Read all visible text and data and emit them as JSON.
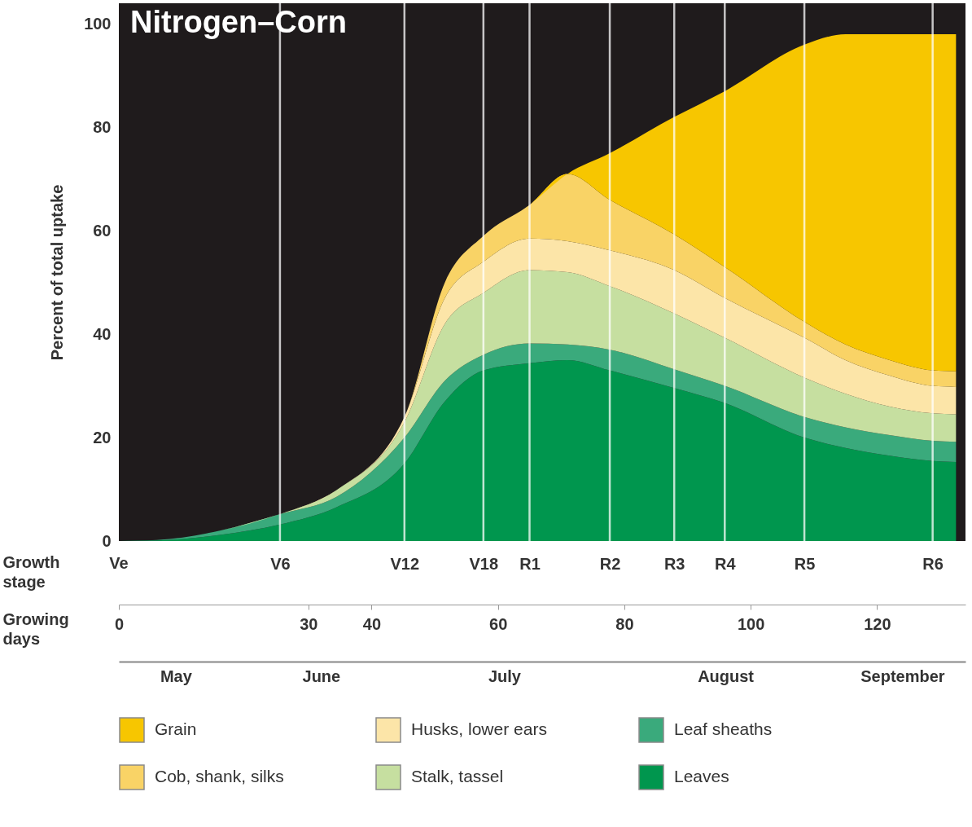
{
  "chart_data": {
    "type": "area",
    "title": "Nitrogen–Corn",
    "ylabel": "Percent of total uptake",
    "xlabel": "Growing days",
    "stacked": true,
    "x": [
      0,
      6,
      16,
      25.5,
      34.4,
      45.2,
      51.6,
      57.7,
      65,
      71,
      77.7,
      87.9,
      95.9,
      108.5,
      115,
      122,
      128.8,
      132.5
    ],
    "series": [
      {
        "name": "Leaves",
        "color": "#00964e",
        "values": [
          0,
          0.1,
          1.2,
          3.2,
          6.5,
          15,
          27,
          33,
          34.4,
          35,
          33,
          29.6,
          26.7,
          20,
          18,
          16.5,
          15.5,
          15.3
        ]
      },
      {
        "name": "Leaf sheaths",
        "color": "#3aaa7c",
        "values": [
          0,
          0.1,
          0.8,
          2,
          2,
          5,
          4,
          3,
          3.8,
          3,
          4,
          3.6,
          3.3,
          4,
          4,
          4,
          3.9,
          3.9
        ]
      },
      {
        "name": "Stalk, tassel",
        "color": "#c6dfa0",
        "values": [
          0,
          0,
          0,
          0,
          1.3,
          3,
          11,
          12,
          14.2,
          14,
          12.3,
          10.8,
          9.3,
          7.6,
          6.5,
          5.5,
          5.3,
          5.3
        ]
      },
      {
        "name": "Husks, lower ears",
        "color": "#fce5a8",
        "values": [
          0,
          0,
          0,
          0,
          0,
          1,
          5,
          6,
          6.1,
          6,
          6.9,
          8.4,
          7.7,
          7.7,
          6.5,
          6,
          5.3,
          5.3
        ]
      },
      {
        "name": "Cob, shank, silks",
        "color": "#f9d366",
        "values": [
          0,
          0,
          0,
          0,
          0,
          0,
          3,
          5,
          6.5,
          13,
          9.8,
          6.9,
          6,
          3.1,
          3,
          3,
          3,
          3
        ]
      },
      {
        "name": "Grain",
        "color": "#f7c600",
        "values": [
          0,
          0,
          0,
          0,
          0,
          0,
          0,
          0,
          0,
          0,
          9,
          22.7,
          34,
          53.6,
          60,
          63,
          65,
          65.2
        ]
      }
    ],
    "xlim": [
      0,
      134
    ],
    "ylim": [
      0,
      104
    ],
    "xticks": [
      0,
      30,
      40,
      60,
      80,
      100,
      120
    ],
    "yticks": [
      0,
      20,
      40,
      60,
      80,
      100
    ],
    "x2lim": [
      "--05-01",
      "--09-12"
    ],
    "x2ticks": [
      {
        "value": "--05-10",
        "label": "May"
      },
      {
        "value": "--06-02",
        "label": "June"
      },
      {
        "value": "--07-01",
        "label": "July"
      },
      {
        "value": "--08-05",
        "label": "August"
      },
      {
        "value": "--09-02",
        "label": "September"
      }
    ],
    "ref_lines": [
      {
        "axis": "x",
        "value": 25.5,
        "label": "V6"
      },
      {
        "axis": "x",
        "value": 45.2,
        "label": "V12"
      },
      {
        "axis": "x",
        "value": 57.7,
        "label": "V18"
      },
      {
        "axis": "x",
        "value": 65,
        "label": "R1"
      },
      {
        "axis": "x",
        "value": 77.7,
        "label": "R2"
      },
      {
        "axis": "x",
        "value": 87.9,
        "label": "R3"
      },
      {
        "axis": "x",
        "value": 95.9,
        "label": "R4"
      },
      {
        "axis": "x",
        "value": 108.5,
        "label": "R5"
      },
      {
        "axis": "x",
        "value": 128.8,
        "label": "R6"
      }
    ],
    "annotations": [
      "Growth stage",
      {
        "text": "Ve",
        "x": 0,
        "y": 0
      }
    ],
    "grid": false,
    "legend": "bottom"
  }
}
